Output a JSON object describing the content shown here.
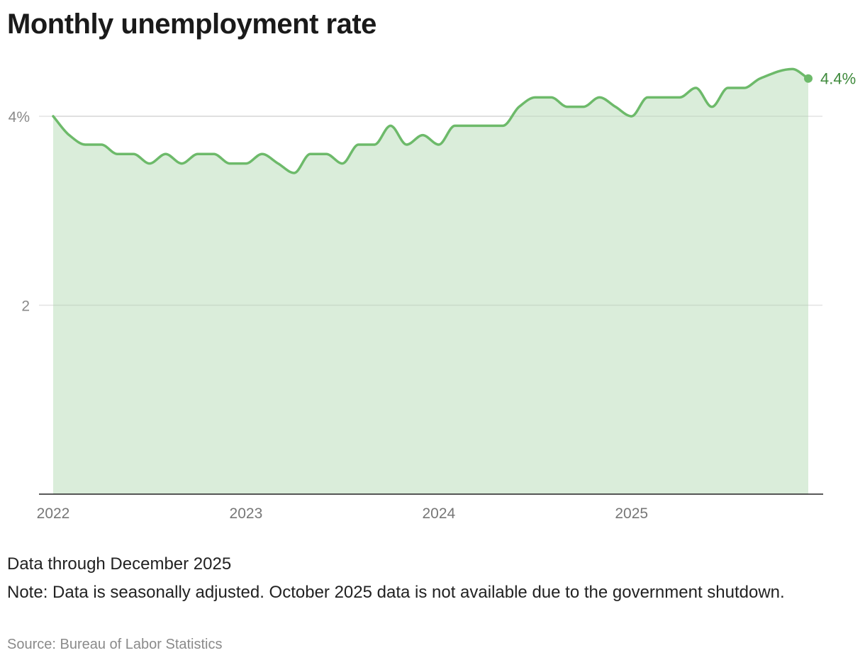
{
  "chart_data": {
    "type": "area",
    "title": "Monthly unemployment rate",
    "x_start": "2022-01",
    "x_end": "2025-12",
    "x_tick_labels": [
      "2022",
      "2023",
      "2024",
      "2025"
    ],
    "y_ticks": [
      2,
      4
    ],
    "y_tick_labels": [
      "2",
      "4%"
    ],
    "ylim": [
      0,
      4.5
    ],
    "grid": true,
    "series": [
      {
        "values": [
          4.0,
          3.8,
          3.7,
          3.7,
          3.6,
          3.6,
          3.5,
          3.6,
          3.5,
          3.6,
          3.6,
          3.5,
          3.5,
          3.6,
          3.5,
          3.4,
          3.6,
          3.6,
          3.5,
          3.7,
          3.7,
          3.9,
          3.7,
          3.8,
          3.7,
          3.9,
          3.9,
          3.9,
          3.9,
          4.1,
          4.2,
          4.2,
          4.1,
          4.1,
          4.2,
          4.1,
          4.0,
          4.2,
          4.2,
          4.2,
          4.3,
          4.1,
          4.3,
          4.3,
          4.4,
          null,
          4.5,
          4.4
        ]
      }
    ],
    "end_label": "4.4%",
    "line_color": "#6dba6a",
    "fill_color": "#d4ead3",
    "label_color": "#3f8a3c"
  },
  "footer": {
    "data_through": "Data through December 2025",
    "note": "Note: Data is seasonally adjusted. October 2025 data is not available due to the government shutdown.",
    "source": "Source: Bureau of Labor Statistics"
  }
}
